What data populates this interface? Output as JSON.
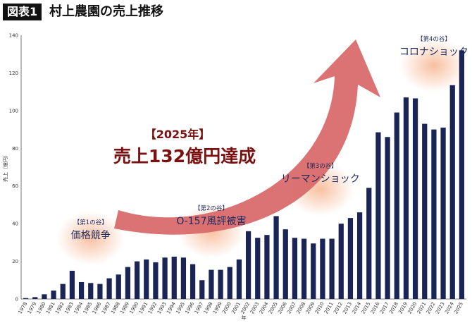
{
  "header": {
    "badge": "図表1",
    "title": "村上農園の売上推移"
  },
  "colors": {
    "bar": "#1a2556",
    "arrow": "#d96a6c",
    "highlight_text": "#7a1010",
    "valley_glow": "#f6b08a"
  },
  "chart_data": {
    "type": "bar",
    "title": "",
    "xlabel": "年",
    "ylabel": "売上（億円）",
    "ylim": [
      0,
      140
    ],
    "yticks": [
      0,
      20,
      40,
      60,
      80,
      100,
      120,
      140
    ],
    "grid": false,
    "categories": [
      "1978",
      "1979",
      "1980",
      "1981",
      "1982",
      "1983",
      "1984",
      "1985",
      "1986",
      "1987",
      "1988",
      "1989",
      "1990",
      "1991",
      "1992",
      "1993",
      "1994",
      "1995",
      "1996",
      "1997",
      "1998",
      "1999",
      "2000",
      "2001",
      "2002",
      "2003",
      "2004",
      "2005",
      "2006",
      "2007",
      "2008",
      "2009",
      "2010",
      "2011",
      "2012",
      "2013",
      "2014",
      "2015",
      "2016",
      "2017",
      "2018",
      "2019",
      "2020",
      "2021",
      "2022",
      "2023",
      "2024",
      "2025"
    ],
    "values": [
      0.5,
      1,
      2.5,
      4.5,
      8,
      15,
      9,
      8.5,
      8,
      11,
      13,
      17,
      20,
      21,
      19.5,
      22,
      22.5,
      22,
      18.5,
      10,
      15.5,
      15.5,
      17,
      21,
      36,
      32.5,
      34,
      44,
      37,
      32.5,
      32,
      29.5,
      32,
      32,
      40,
      43,
      46,
      59,
      88.5,
      86,
      99,
      107,
      106.5,
      93,
      90,
      91,
      113.5,
      132
    ],
    "annotations": [
      {
        "tag": "【第1の谷】",
        "label": "価格競争",
        "year": "1985"
      },
      {
        "tag": "【第2の谷】",
        "label": "O-157風評被害",
        "year": "1998"
      },
      {
        "tag": "【第3の谷】",
        "label": "リーマンショック",
        "year": "2009"
      },
      {
        "tag": "【第4の谷】",
        "label": "コロナショック",
        "year": "2022"
      }
    ],
    "highlight": {
      "year_label": "【2025年】",
      "text": "売上132億円達成"
    }
  }
}
